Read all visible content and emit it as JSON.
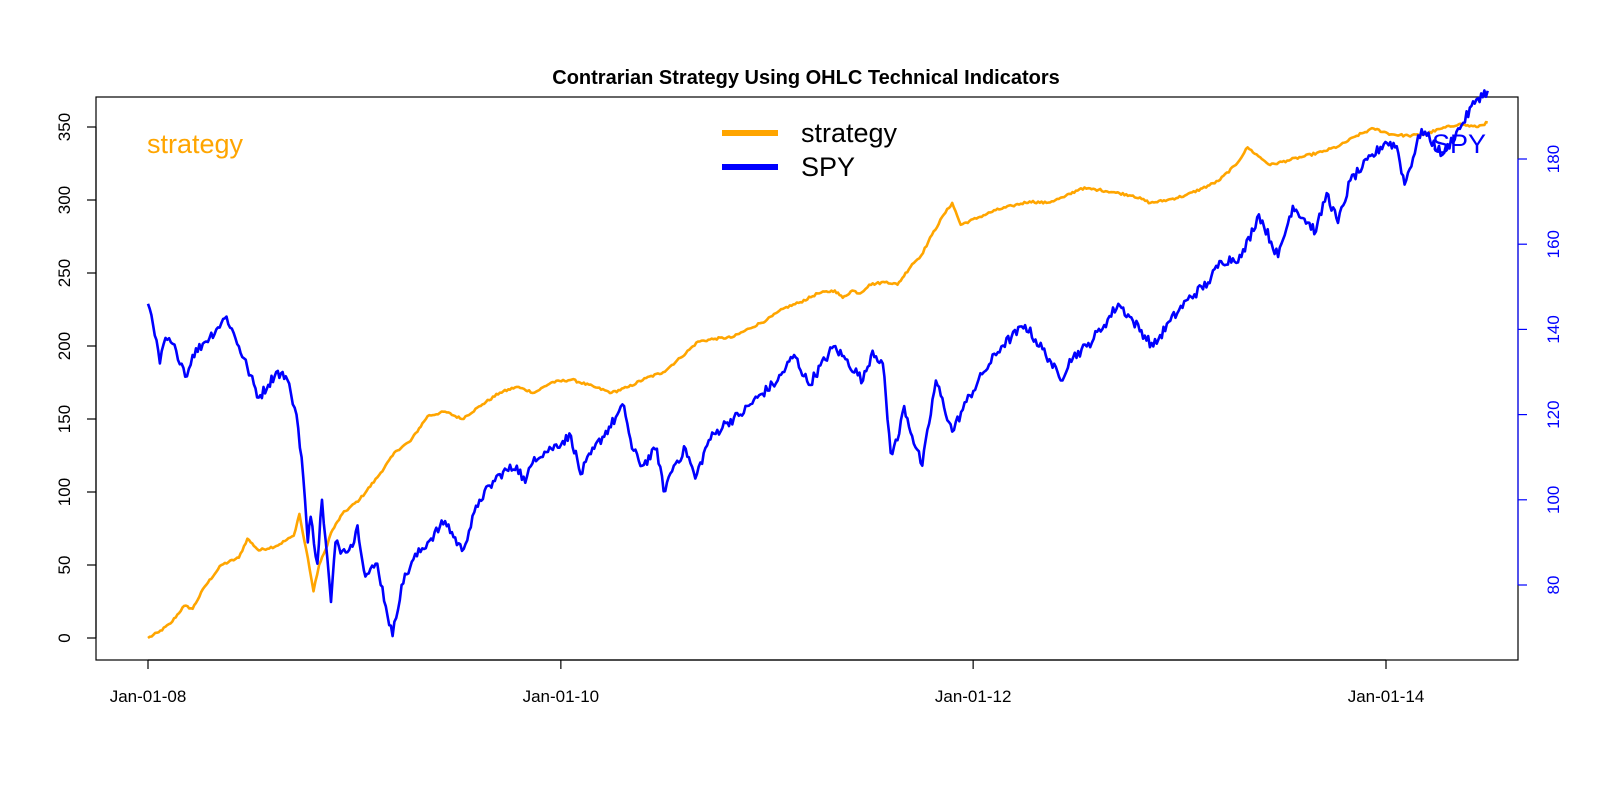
{
  "chart_data": {
    "type": "line",
    "title": "Contrarian Strategy Using OHLC Technical Indicators",
    "xlabel": "",
    "ylabel": "",
    "x_axis": {
      "type": "date",
      "range": [
        "2008-01-01",
        "2014-07-15"
      ],
      "ticks": [
        {
          "date": "2008-01-01",
          "label": "Jan-01-08"
        },
        {
          "date": "2010-01-01",
          "label": "Jan-01-10"
        },
        {
          "date": "2012-01-01",
          "label": "Jan-01-12"
        },
        {
          "date": "2014-01-01",
          "label": "Jan-01-14"
        }
      ]
    },
    "y_axis_left": {
      "range": [
        0,
        360
      ],
      "ticks": [
        0,
        50,
        100,
        150,
        200,
        250,
        300,
        350
      ],
      "color": "#000000"
    },
    "y_axis_right": {
      "range": [
        68,
        188
      ],
      "ticks": [
        80,
        100,
        120,
        140,
        160,
        180
      ],
      "color": "#0000ff"
    },
    "grid": false,
    "legend": {
      "position": "top-center",
      "entries": [
        "strategy",
        "SPY"
      ]
    },
    "series": [
      {
        "name": "strategy",
        "axis": "left",
        "color": "#ffa500",
        "label": "strategy",
        "points": [
          [
            "2008-01-01",
            0
          ],
          [
            "2008-01-20",
            4
          ],
          [
            "2008-02-10",
            10
          ],
          [
            "2008-03-05",
            22
          ],
          [
            "2008-03-20",
            20
          ],
          [
            "2008-04-10",
            35
          ],
          [
            "2008-05-10",
            50
          ],
          [
            "2008-06-10",
            55
          ],
          [
            "2008-06-25",
            68
          ],
          [
            "2008-07-15",
            60
          ],
          [
            "2008-08-15",
            63
          ],
          [
            "2008-09-15",
            70
          ],
          [
            "2008-09-25",
            85
          ],
          [
            "2008-10-01",
            72
          ],
          [
            "2008-10-10",
            55
          ],
          [
            "2008-10-20",
            32
          ],
          [
            "2008-10-30",
            50
          ],
          [
            "2008-11-10",
            60
          ],
          [
            "2008-11-20",
            72
          ],
          [
            "2008-12-10",
            85
          ],
          [
            "2009-01-10",
            95
          ],
          [
            "2009-02-10",
            110
          ],
          [
            "2009-03-15",
            128
          ],
          [
            "2009-04-10",
            135
          ],
          [
            "2009-05-10",
            152
          ],
          [
            "2009-06-10",
            155
          ],
          [
            "2009-07-10",
            150
          ],
          [
            "2009-08-15",
            160
          ],
          [
            "2009-09-15",
            168
          ],
          [
            "2009-10-15",
            172
          ],
          [
            "2009-11-15",
            168
          ],
          [
            "2009-12-15",
            175
          ],
          [
            "2010-01-20",
            177
          ],
          [
            "2010-03-01",
            172
          ],
          [
            "2010-04-01",
            168
          ],
          [
            "2010-05-01",
            172
          ],
          [
            "2010-06-01",
            178
          ],
          [
            "2010-07-01",
            182
          ],
          [
            "2010-08-01",
            192
          ],
          [
            "2010-09-01",
            203
          ],
          [
            "2010-10-01",
            205
          ],
          [
            "2010-11-01",
            206
          ],
          [
            "2010-12-01",
            212
          ],
          [
            "2011-01-01",
            218
          ],
          [
            "2011-02-01",
            226
          ],
          [
            "2011-03-01",
            230
          ],
          [
            "2011-04-01",
            236
          ],
          [
            "2011-05-01",
            238
          ],
          [
            "2011-05-15",
            233
          ],
          [
            "2011-06-01",
            238
          ],
          [
            "2011-06-15",
            236
          ],
          [
            "2011-07-01",
            242
          ],
          [
            "2011-08-01",
            244
          ],
          [
            "2011-08-20",
            242
          ],
          [
            "2011-09-15",
            256
          ],
          [
            "2011-10-01",
            262
          ],
          [
            "2011-10-20",
            276
          ],
          [
            "2011-11-10",
            290
          ],
          [
            "2011-11-25",
            298
          ],
          [
            "2011-12-10",
            283
          ],
          [
            "2012-01-10",
            288
          ],
          [
            "2012-02-10",
            293
          ],
          [
            "2012-03-10",
            296
          ],
          [
            "2012-04-10",
            299
          ],
          [
            "2012-05-10",
            298
          ],
          [
            "2012-06-10",
            302
          ],
          [
            "2012-07-10",
            308
          ],
          [
            "2012-08-10",
            307
          ],
          [
            "2012-09-10",
            305
          ],
          [
            "2012-10-10",
            303
          ],
          [
            "2012-11-10",
            298
          ],
          [
            "2012-12-10",
            300
          ],
          [
            "2013-01-10",
            303
          ],
          [
            "2013-02-10",
            308
          ],
          [
            "2013-03-10",
            313
          ],
          [
            "2013-04-10",
            324
          ],
          [
            "2013-05-01",
            336
          ],
          [
            "2013-05-20",
            330
          ],
          [
            "2013-06-10",
            324
          ],
          [
            "2013-07-10",
            327
          ],
          [
            "2013-08-10",
            330
          ],
          [
            "2013-09-10",
            333
          ],
          [
            "2013-10-10",
            337
          ],
          [
            "2013-11-10",
            344
          ],
          [
            "2013-12-10",
            349
          ],
          [
            "2014-01-10",
            345
          ],
          [
            "2014-02-10",
            344
          ],
          [
            "2014-03-10",
            345
          ],
          [
            "2014-04-10",
            349
          ],
          [
            "2014-05-10",
            352
          ],
          [
            "2014-06-10",
            350
          ],
          [
            "2014-06-30",
            353
          ]
        ]
      },
      {
        "name": "SPY",
        "axis": "right",
        "color": "#0000ff",
        "label": "SPY",
        "points": [
          [
            "2008-01-01",
            146
          ],
          [
            "2008-01-10",
            141
          ],
          [
            "2008-01-22",
            132
          ],
          [
            "2008-02-01",
            138
          ],
          [
            "2008-02-20",
            135
          ],
          [
            "2008-03-10",
            129
          ],
          [
            "2008-03-20",
            134
          ],
          [
            "2008-04-10",
            137
          ],
          [
            "2008-05-01",
            140
          ],
          [
            "2008-05-19",
            143
          ],
          [
            "2008-06-10",
            136
          ],
          [
            "2008-06-25",
            131
          ],
          [
            "2008-07-15",
            124
          ],
          [
            "2008-08-01",
            127
          ],
          [
            "2008-08-15",
            130
          ],
          [
            "2008-09-01",
            129
          ],
          [
            "2008-09-10",
            125
          ],
          [
            "2008-09-20",
            120
          ],
          [
            "2008-09-29",
            110
          ],
          [
            "2008-10-05",
            100
          ],
          [
            "2008-10-10",
            90
          ],
          [
            "2008-10-15",
            96
          ],
          [
            "2008-10-27",
            85
          ],
          [
            "2008-11-04",
            100
          ],
          [
            "2008-11-20",
            76
          ],
          [
            "2008-11-28",
            90
          ],
          [
            "2008-12-10",
            88
          ],
          [
            "2008-12-31",
            90
          ],
          [
            "2009-01-06",
            94
          ],
          [
            "2009-01-20",
            82
          ],
          [
            "2009-02-10",
            85
          ],
          [
            "2009-02-25",
            75
          ],
          [
            "2009-03-09",
            68
          ],
          [
            "2009-03-25",
            80
          ],
          [
            "2009-04-15",
            86
          ],
          [
            "2009-05-10",
            90
          ],
          [
            "2009-06-10",
            95
          ],
          [
            "2009-07-10",
            88
          ],
          [
            "2009-08-10",
            100
          ],
          [
            "2009-09-15",
            106
          ],
          [
            "2009-10-15",
            108
          ],
          [
            "2009-10-30",
            104
          ],
          [
            "2009-11-15",
            110
          ],
          [
            "2009-12-15",
            112
          ],
          [
            "2010-01-19",
            115
          ],
          [
            "2010-02-05",
            106
          ],
          [
            "2010-03-01",
            112
          ],
          [
            "2010-04-23",
            122
          ],
          [
            "2010-05-07",
            112
          ],
          [
            "2010-05-25",
            108
          ],
          [
            "2010-06-20",
            112
          ],
          [
            "2010-07-02",
            102
          ],
          [
            "2010-07-20",
            108
          ],
          [
            "2010-08-10",
            112
          ],
          [
            "2010-08-27",
            105
          ],
          [
            "2010-09-20",
            114
          ],
          [
            "2010-10-20",
            118
          ],
          [
            "2010-11-15",
            120
          ],
          [
            "2010-12-15",
            124
          ],
          [
            "2011-01-20",
            128
          ],
          [
            "2011-02-18",
            134
          ],
          [
            "2011-03-16",
            127
          ],
          [
            "2011-04-29",
            136
          ],
          [
            "2011-05-20",
            133
          ],
          [
            "2011-06-20",
            128
          ],
          [
            "2011-07-07",
            135
          ],
          [
            "2011-07-25",
            132
          ],
          [
            "2011-08-08",
            111
          ],
          [
            "2011-08-20",
            114
          ],
          [
            "2011-09-01",
            122
          ],
          [
            "2011-09-15",
            115
          ],
          [
            "2011-10-03",
            108
          ],
          [
            "2011-10-27",
            128
          ],
          [
            "2011-11-25",
            116
          ],
          [
            "2011-12-20",
            123
          ],
          [
            "2012-01-20",
            130
          ],
          [
            "2012-02-20",
            136
          ],
          [
            "2012-04-02",
            141
          ],
          [
            "2012-05-15",
            133
          ],
          [
            "2012-06-04",
            128
          ],
          [
            "2012-06-20",
            133
          ],
          [
            "2012-07-20",
            136
          ],
          [
            "2012-08-20",
            141
          ],
          [
            "2012-09-14",
            146
          ],
          [
            "2012-10-10",
            142
          ],
          [
            "2012-11-15",
            136
          ],
          [
            "2012-12-15",
            142
          ],
          [
            "2013-01-15",
            147
          ],
          [
            "2013-02-20",
            151
          ],
          [
            "2013-03-15",
            156
          ],
          [
            "2013-04-20",
            157
          ],
          [
            "2013-05-21",
            167
          ],
          [
            "2013-06-24",
            157
          ],
          [
            "2013-07-20",
            169
          ],
          [
            "2013-08-30",
            163
          ],
          [
            "2013-09-18",
            172
          ],
          [
            "2013-10-08",
            165
          ],
          [
            "2013-10-30",
            175
          ],
          [
            "2013-11-20",
            178
          ],
          [
            "2013-12-31",
            184
          ],
          [
            "2014-01-20",
            183
          ],
          [
            "2014-02-03",
            174
          ],
          [
            "2014-03-05",
            187
          ],
          [
            "2014-04-11",
            181
          ],
          [
            "2014-05-15",
            188
          ],
          [
            "2014-06-10",
            194
          ],
          [
            "2014-06-30",
            196
          ]
        ]
      }
    ]
  }
}
